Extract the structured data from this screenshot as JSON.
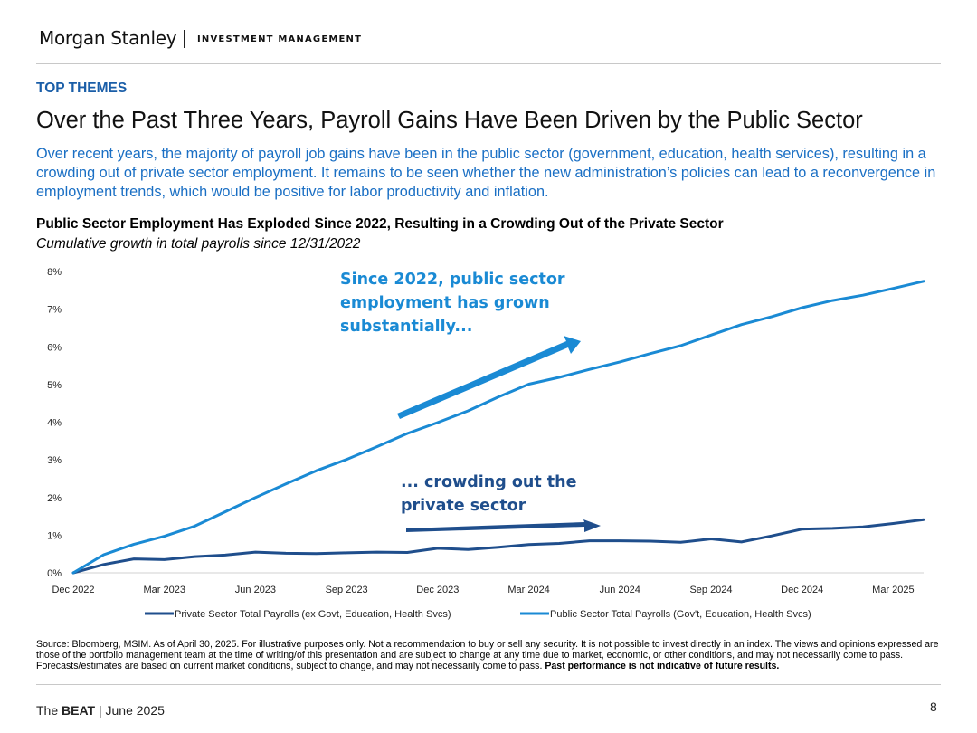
{
  "header": {
    "logo_text": "Morgan Stanley",
    "subtitle": "INVESTMENT MANAGEMENT"
  },
  "section_label": "TOP THEMES",
  "page_title": "Over the Past Three Years, Payroll Gains Have Been Driven by the Public Sector",
  "intro_text": "Over recent years, the majority of payroll job gains have been in the public sector (government, education, health services), resulting in a crowding out of private sector employment. It remains to be seen whether the new administration’s policies can lead to a reconvergence in employment trends, which would be positive for labor productivity and inflation.",
  "chart_data": {
    "type": "line",
    "title": "Public Sector Employment Has Exploded Since 2022, Resulting in a Crowding Out of the Private Sector",
    "subtitle": "Cumulative growth in total payrolls since 12/31/2022",
    "x": [
      "2022-12",
      "2023-01",
      "2023-02",
      "2023-03",
      "2023-04",
      "2023-05",
      "2023-06",
      "2023-07",
      "2023-08",
      "2023-09",
      "2023-10",
      "2023-11",
      "2023-12",
      "2024-01",
      "2024-02",
      "2024-03",
      "2024-04",
      "2024-05",
      "2024-06",
      "2024-07",
      "2024-08",
      "2024-09",
      "2024-10",
      "2024-11",
      "2024-12",
      "2025-01",
      "2025-02",
      "2025-03",
      "2025-04"
    ],
    "x_tick_labels": [
      "Dec 2022",
      "Mar 2023",
      "Jun 2023",
      "Sep 2023",
      "Dec 2023",
      "Mar 2024",
      "Jun 2024",
      "Sep 2024",
      "Dec 2024",
      "Mar 2025"
    ],
    "x_tick_index": [
      0,
      3,
      6,
      9,
      12,
      15,
      18,
      21,
      24,
      27
    ],
    "y_tick_labels": [
      "0%",
      "1%",
      "2%",
      "3%",
      "4%",
      "5%",
      "6%",
      "7%",
      "8%"
    ],
    "ylim": [
      0,
      8
    ],
    "y_unit": "%",
    "grid": false,
    "legend_position": "bottom",
    "series": [
      {
        "name": "Private Sector Total Payrolls (ex Govt, Education, Health Svcs)",
        "color": "#1f4e8c",
        "values": [
          0.0,
          0.22,
          0.37,
          0.35,
          0.43,
          0.47,
          0.55,
          0.52,
          0.51,
          0.53,
          0.55,
          0.54,
          0.65,
          0.62,
          0.68,
          0.75,
          0.78,
          0.85,
          0.85,
          0.84,
          0.81,
          0.9,
          0.82,
          0.98,
          1.16,
          1.18,
          1.22,
          1.31,
          1.41
        ]
      },
      {
        "name": "Public Sector Total Payrolls (Gov't, Education, Health Svcs)",
        "color": "#1a8ad4",
        "values": [
          0.0,
          0.48,
          0.76,
          0.97,
          1.24,
          1.62,
          2.0,
          2.36,
          2.71,
          3.01,
          3.35,
          3.7,
          3.99,
          4.3,
          4.67,
          5.01,
          5.19,
          5.4,
          5.6,
          5.82,
          6.03,
          6.31,
          6.59,
          6.8,
          7.04,
          7.23,
          7.37,
          7.55,
          7.74
        ]
      }
    ],
    "annotations": [
      {
        "text_lines": [
          "Since 2022, public sector",
          "employment has grown",
          "substantially..."
        ],
        "color": "#1a8ad4"
      },
      {
        "text_lines": [
          "... crowding out the",
          "private sector"
        ],
        "color": "#1f4e8c"
      }
    ]
  },
  "footnote": {
    "text": "Source: Bloomberg, MSIM. As of April 30, 2025. For illustrative purposes only. Not a recommendation to buy or sell any security. It is not possible to invest directly in an index. The views and opinions expressed are those of the portfolio management team at the time of writing/of this presentation and are subject to change at any time due to market, economic, or other conditions, and may not necessarily come to pass.  Forecasts/estimates are based on current market conditions, subject to change, and may not necessarily come to pass. ",
    "bold_text": "Past performance is not indicative of future results."
  },
  "footer": {
    "prefix": "The ",
    "brand": "BEAT",
    "suffix": " | June 2025",
    "page_number": "8"
  }
}
